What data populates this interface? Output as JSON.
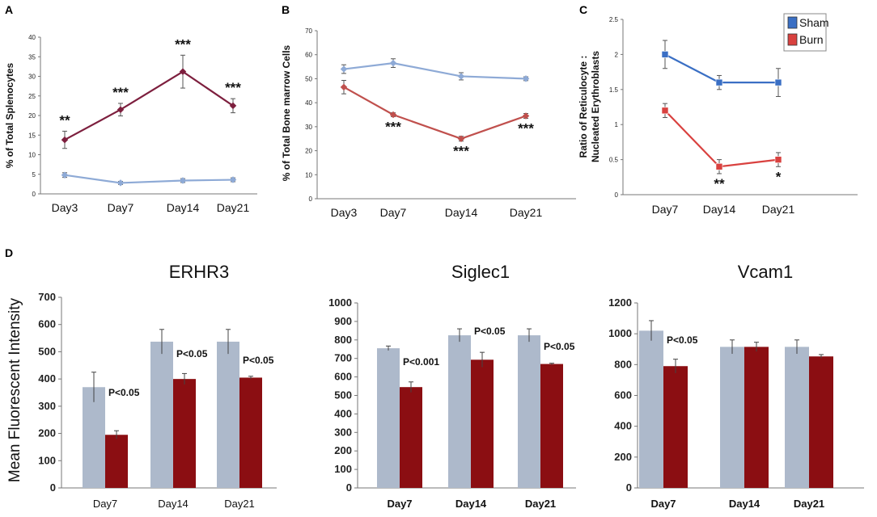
{
  "chart_data": [
    {
      "panel": "A",
      "type": "line",
      "categories": [
        "Day3",
        "Day7",
        "Day14",
        "Day21"
      ],
      "ylabel": "% of Total Splenocytes",
      "ylim": [
        0,
        40
      ],
      "yticks": [
        0,
        5,
        10,
        15,
        20,
        25,
        30,
        35,
        40
      ],
      "series": [
        {
          "name": "Sham",
          "color": "#8eaad6",
          "values": [
            4.8,
            2.8,
            3.4,
            3.6
          ],
          "errors": [
            0.6,
            0.4,
            0.5,
            0.5
          ]
        },
        {
          "name": "Burn",
          "color": "#7d1f3e",
          "values": [
            13.8,
            21.5,
            31.2,
            22.5
          ],
          "errors": [
            2.2,
            1.6,
            4.2,
            1.8
          ]
        }
      ],
      "annotations": [
        {
          "series": "Burn",
          "index": 0,
          "text": "**"
        },
        {
          "series": "Burn",
          "index": 1,
          "text": "***"
        },
        {
          "series": "Burn",
          "index": 2,
          "text": "***"
        },
        {
          "series": "Burn",
          "index": 3,
          "text": "***"
        }
      ]
    },
    {
      "panel": "B",
      "type": "line",
      "categories": [
        "Day3",
        "Day7",
        "Day14",
        "Day21"
      ],
      "ylabel": "% of Total Bone marrow Cells",
      "ylim": [
        0,
        70
      ],
      "yticks": [
        0,
        10,
        20,
        30,
        40,
        50,
        60,
        70
      ],
      "series": [
        {
          "name": "Sham",
          "color": "#8eaad6",
          "values": [
            54,
            56.5,
            51,
            50
          ],
          "errors": [
            1.8,
            1.8,
            1.5,
            0.8
          ]
        },
        {
          "name": "Burn",
          "color": "#c0504d",
          "values": [
            46.5,
            35,
            25,
            34.5
          ],
          "errors": [
            2.8,
            0.8,
            1.0,
            1.0
          ]
        }
      ],
      "annotations": [
        {
          "series": "Burn",
          "index": 1,
          "text": "***"
        },
        {
          "series": "Burn",
          "index": 2,
          "text": "***"
        },
        {
          "series": "Burn",
          "index": 3,
          "text": "***"
        }
      ]
    },
    {
      "panel": "C",
      "type": "line",
      "categories": [
        "Day7",
        "Day14",
        "Day21"
      ],
      "ylabel": "Ratio of Reticulocyte : Nucleated Erythroblasts",
      "ylabel_lines": [
        "Ratio of Reticulocyte :",
        "Nucleated Erythroblasts"
      ],
      "ylim": [
        0,
        2.5
      ],
      "yticks": [
        "0",
        "0.5",
        "1",
        "1.5",
        "2",
        "2.5"
      ],
      "legend": [
        "Sham",
        "Burn"
      ],
      "series": [
        {
          "name": "Sham",
          "color": "#3a6fc4",
          "values": [
            2.0,
            1.6,
            1.6
          ],
          "errors": [
            0.2,
            0.1,
            0.2
          ]
        },
        {
          "name": "Burn",
          "color": "#d9413f",
          "values": [
            1.2,
            0.4,
            0.5
          ],
          "errors": [
            0.1,
            0.1,
            0.1
          ]
        }
      ],
      "annotations": [
        {
          "series": "Burn",
          "index": 1,
          "text": "**"
        },
        {
          "series": "Burn",
          "index": 2,
          "text": "*"
        }
      ]
    },
    {
      "panel": "D",
      "type": "bar",
      "title": "ERHR3",
      "categories": [
        "Day7",
        "Day14",
        "Day21"
      ],
      "ylabel": "Mean Fluorescent Intensity",
      "ylim": [
        0,
        700
      ],
      "yticks": [
        0,
        100,
        200,
        300,
        400,
        500,
        600,
        700
      ],
      "series": [
        {
          "name": "Sham",
          "color": "#adb9cb",
          "values": [
            370,
            537,
            537
          ],
          "errors": [
            55,
            45,
            45
          ]
        },
        {
          "name": "Burn",
          "color": "#8b0e12",
          "values": [
            195,
            400,
            405
          ],
          "errors": [
            15,
            20,
            5
          ]
        }
      ],
      "pvalues": [
        "P<0.05",
        "P<0.05",
        "P<0.05"
      ]
    },
    {
      "type": "bar",
      "title": "Siglec1",
      "categories": [
        "Day7",
        "Day14",
        "Day21"
      ],
      "ylim": [
        0,
        1000
      ],
      "yticks": [
        0,
        100,
        200,
        300,
        400,
        500,
        600,
        700,
        800,
        900,
        1000
      ],
      "series": [
        {
          "name": "Sham",
          "color": "#adb9cb",
          "values": [
            755,
            825,
            825
          ],
          "errors": [
            12,
            35,
            35
          ]
        },
        {
          "name": "Burn",
          "color": "#8b0e12",
          "values": [
            545,
            693,
            670
          ],
          "errors": [
            28,
            40,
            4
          ]
        }
      ],
      "pvalues": [
        "P<0.001",
        "P<0.05",
        "P<0.05"
      ]
    },
    {
      "type": "bar",
      "title": "Vcam1",
      "categories": [
        "Day7",
        "Day14",
        "Day21"
      ],
      "ylim": [
        0,
        1200
      ],
      "yticks": [
        0,
        200,
        400,
        600,
        800,
        1000,
        1200
      ],
      "series": [
        {
          "name": "Sham",
          "color": "#adb9cb",
          "values": [
            1020,
            915,
            915
          ],
          "errors": [
            65,
            45,
            45
          ]
        },
        {
          "name": "Burn",
          "color": "#8b0e12",
          "values": [
            790,
            915,
            853
          ],
          "errors": [
            45,
            30,
            12
          ]
        }
      ],
      "pvalues": [
        "P<0.05",
        "",
        ""
      ]
    }
  ]
}
